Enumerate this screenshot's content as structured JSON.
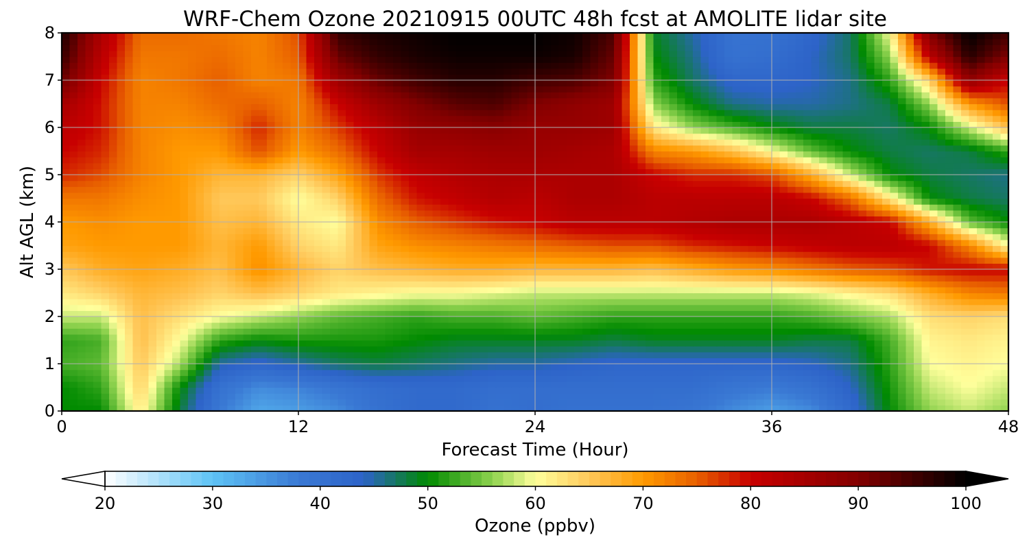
{
  "chart_data": {
    "type": "heatmap",
    "title": "WRF-Chem Ozone  20210915 00UTC 48h fcst at AMOLITE lidar site",
    "xlabel": "Forecast Time (Hour)",
    "ylabel": "Alt AGL (km)",
    "xlim": [
      0,
      48
    ],
    "ylim": [
      0,
      8
    ],
    "x_ticks": [
      0,
      12,
      24,
      36,
      48
    ],
    "y_ticks": [
      0,
      1,
      2,
      3,
      4,
      5,
      6,
      7,
      8
    ],
    "grid": true,
    "colorbar": {
      "label": "Ozone  (ppbv)",
      "vmin": 20,
      "vmax": 100,
      "ticks": [
        20,
        30,
        40,
        50,
        60,
        70,
        80,
        90,
        100
      ],
      "extend": "both",
      "colors": [
        "#ffffff",
        "#5ec3f5",
        "#3a79d4",
        "#2d63c8",
        "#008a00",
        "#8ed24e",
        "#ffff9c",
        "#ffc85a",
        "#ff9a00",
        "#e86000",
        "#c80000",
        "#820000",
        "#000000"
      ],
      "positions": [
        20,
        30,
        38,
        44,
        50,
        56,
        60,
        65,
        70,
        75,
        80,
        90,
        100
      ]
    },
    "x": [
      0,
      2,
      4,
      6,
      8,
      10,
      12,
      14,
      16,
      18,
      20,
      22,
      24,
      26,
      28,
      30,
      32,
      34,
      36,
      38,
      40,
      42,
      44,
      46,
      48
    ],
    "y": [
      0,
      0.5,
      1,
      1.5,
      2,
      2.5,
      3,
      3.5,
      4,
      4.5,
      5,
      5.5,
      6,
      6.5,
      7,
      7.5,
      8
    ],
    "z": [
      [
        50,
        50,
        62,
        48,
        38,
        33,
        34,
        36,
        40,
        42,
        42,
        40,
        41,
        40,
        40,
        40,
        39,
        36,
        34,
        36,
        42,
        50,
        56,
        58,
        56
      ],
      [
        50,
        52,
        64,
        50,
        40,
        36,
        37,
        39,
        41,
        42,
        42,
        41,
        41,
        41,
        41,
        41,
        41,
        39,
        38,
        40,
        44,
        51,
        58,
        60,
        58
      ],
      [
        53,
        54,
        65,
        57,
        45,
        43,
        45,
        47,
        48,
        47,
        46,
        45,
        45,
        44,
        43,
        43,
        43,
        43,
        43,
        44,
        46,
        52,
        60,
        61,
        60
      ],
      [
        52,
        53,
        66,
        60,
        52,
        50,
        51,
        51,
        51,
        50,
        49,
        49,
        49,
        49,
        48,
        49,
        49,
        49,
        49,
        48,
        48,
        53,
        61,
        62,
        61
      ],
      [
        58,
        58,
        66,
        63,
        60,
        58,
        56,
        54,
        53,
        52,
        53,
        53,
        54,
        53,
        52,
        52,
        52,
        52,
        52,
        53,
        55,
        57,
        63,
        64,
        63
      ],
      [
        62,
        64,
        67,
        66,
        64,
        66,
        64,
        62,
        61,
        60,
        60,
        59,
        58,
        58,
        58,
        58,
        58,
        58,
        58,
        59,
        61,
        63,
        68,
        72,
        73
      ],
      [
        65,
        68,
        69,
        68,
        66,
        71,
        67,
        64,
        66,
        67,
        68,
        68,
        67,
        67,
        67,
        66,
        68,
        70,
        71,
        73,
        75,
        76,
        79,
        80,
        80
      ],
      [
        69,
        70,
        70,
        70,
        67,
        70,
        64,
        62,
        69,
        71,
        72,
        73,
        74,
        75,
        76,
        76,
        78,
        79,
        80,
        81,
        82,
        82,
        80,
        72,
        60
      ],
      [
        70,
        71,
        70,
        70,
        66,
        67,
        62,
        60,
        71,
        75,
        77,
        79,
        80,
        82,
        82,
        82,
        83,
        84,
        84,
        84,
        82,
        80,
        68,
        54,
        50
      ],
      [
        73,
        73,
        71,
        70,
        65,
        65,
        60,
        64,
        74,
        79,
        81,
        83,
        82,
        84,
        84,
        82,
        82,
        82,
        82,
        80,
        74,
        62,
        50,
        48,
        47
      ],
      [
        78,
        76,
        72,
        70,
        67,
        67,
        64,
        69,
        77,
        81,
        83,
        84,
        84,
        84,
        84,
        80,
        78,
        78,
        76,
        68,
        58,
        50,
        48,
        47,
        46
      ],
      [
        80,
        78,
        72,
        70,
        70,
        76,
        70,
        74,
        80,
        85,
        85,
        86,
        86,
        85,
        84,
        72,
        70,
        66,
        60,
        54,
        50,
        48,
        47,
        48,
        52
      ],
      [
        82,
        79,
        72,
        71,
        72,
        78,
        72,
        77,
        82,
        87,
        88,
        89,
        87,
        87,
        86,
        62,
        56,
        53,
        50,
        48,
        48,
        47,
        50,
        58,
        66
      ],
      [
        85,
        79,
        72,
        72,
        74,
        75,
        72,
        80,
        86,
        90,
        93,
        94,
        90,
        88,
        86,
        56,
        50,
        46,
        45,
        45,
        46,
        48,
        56,
        70,
        76
      ],
      [
        92,
        80,
        72,
        73,
        75,
        72,
        73,
        86,
        92,
        95,
        97,
        97,
        95,
        94,
        90,
        52,
        47,
        43,
        43,
        44,
        46,
        52,
        64,
        88,
        80
      ],
      [
        96,
        82,
        73,
        73,
        74,
        72,
        75,
        92,
        96,
        98,
        99,
        99,
        99,
        98,
        92,
        50,
        46,
        40,
        41,
        44,
        47,
        56,
        82,
        97,
        90
      ],
      [
        98,
        84,
        74,
        74,
        73,
        72,
        76,
        96,
        98,
        99,
        100,
        100,
        100,
        99,
        94,
        49,
        45,
        40,
        40,
        43,
        47,
        60,
        90,
        100,
        95
      ]
    ]
  }
}
